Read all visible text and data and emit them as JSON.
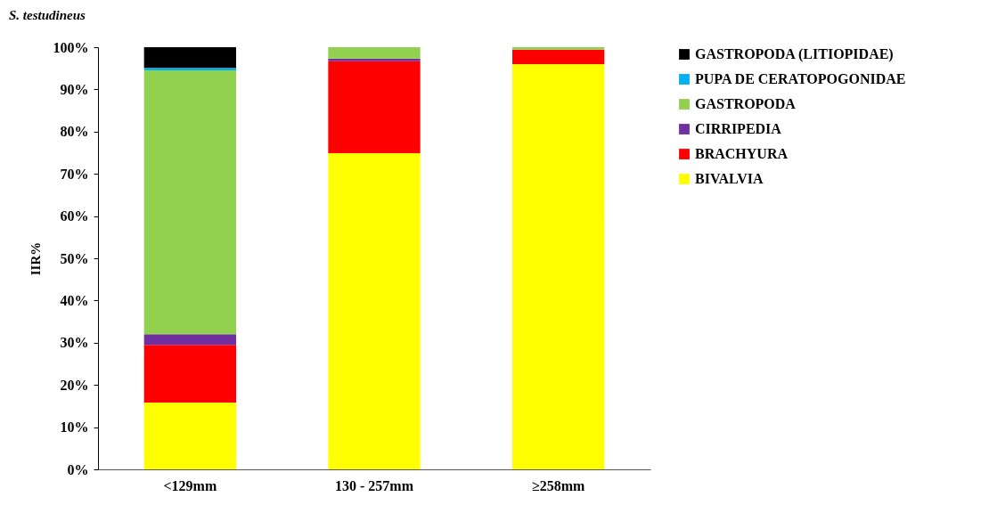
{
  "chart_data": {
    "type": "bar",
    "title": "S. testudineus",
    "ylabel": "IIR%",
    "categories": [
      "<129mm",
      "130 - 257mm",
      "≥258mm"
    ],
    "stacked": true,
    "series": [
      {
        "name": "BIVALVIA",
        "color": "#ffff00",
        "values": [
          15.8,
          74.9,
          96.0
        ]
      },
      {
        "name": "BRACHYURA",
        "color": "#ff0000",
        "values": [
          13.7,
          21.8,
          3.4
        ]
      },
      {
        "name": "CIRRIPEDIA",
        "color": "#7030a0",
        "values": [
          2.5,
          0.6,
          0
        ]
      },
      {
        "name": "GASTROPODA",
        "color": "#92d050",
        "values": [
          62.5,
          2.7,
          0.6
        ]
      },
      {
        "name": "PUPA DE CERATOPOGONIDAE",
        "color": "#00b0f0",
        "values": [
          0.6,
          0,
          0
        ]
      },
      {
        "name": "GASTROPODA (LITIOPIDAE)",
        "color": "#000000",
        "values": [
          4.9,
          0,
          0
        ]
      }
    ],
    "ylim": [
      0,
      100
    ],
    "yticks": [
      {
        "value": 0,
        "label": "0%"
      },
      {
        "value": 10,
        "label": "10%"
      },
      {
        "value": 20,
        "label": "20%"
      },
      {
        "value": 30,
        "label": "30%"
      },
      {
        "value": 40,
        "label": "40%"
      },
      {
        "value": 50,
        "label": "50%"
      },
      {
        "value": 60,
        "label": "60%"
      },
      {
        "value": 70,
        "label": "70%"
      },
      {
        "value": 80,
        "label": "80%"
      },
      {
        "value": 90,
        "label": "90%"
      },
      {
        "value": 100,
        "label": "100%"
      }
    ],
    "grid": false,
    "legend": "right"
  }
}
